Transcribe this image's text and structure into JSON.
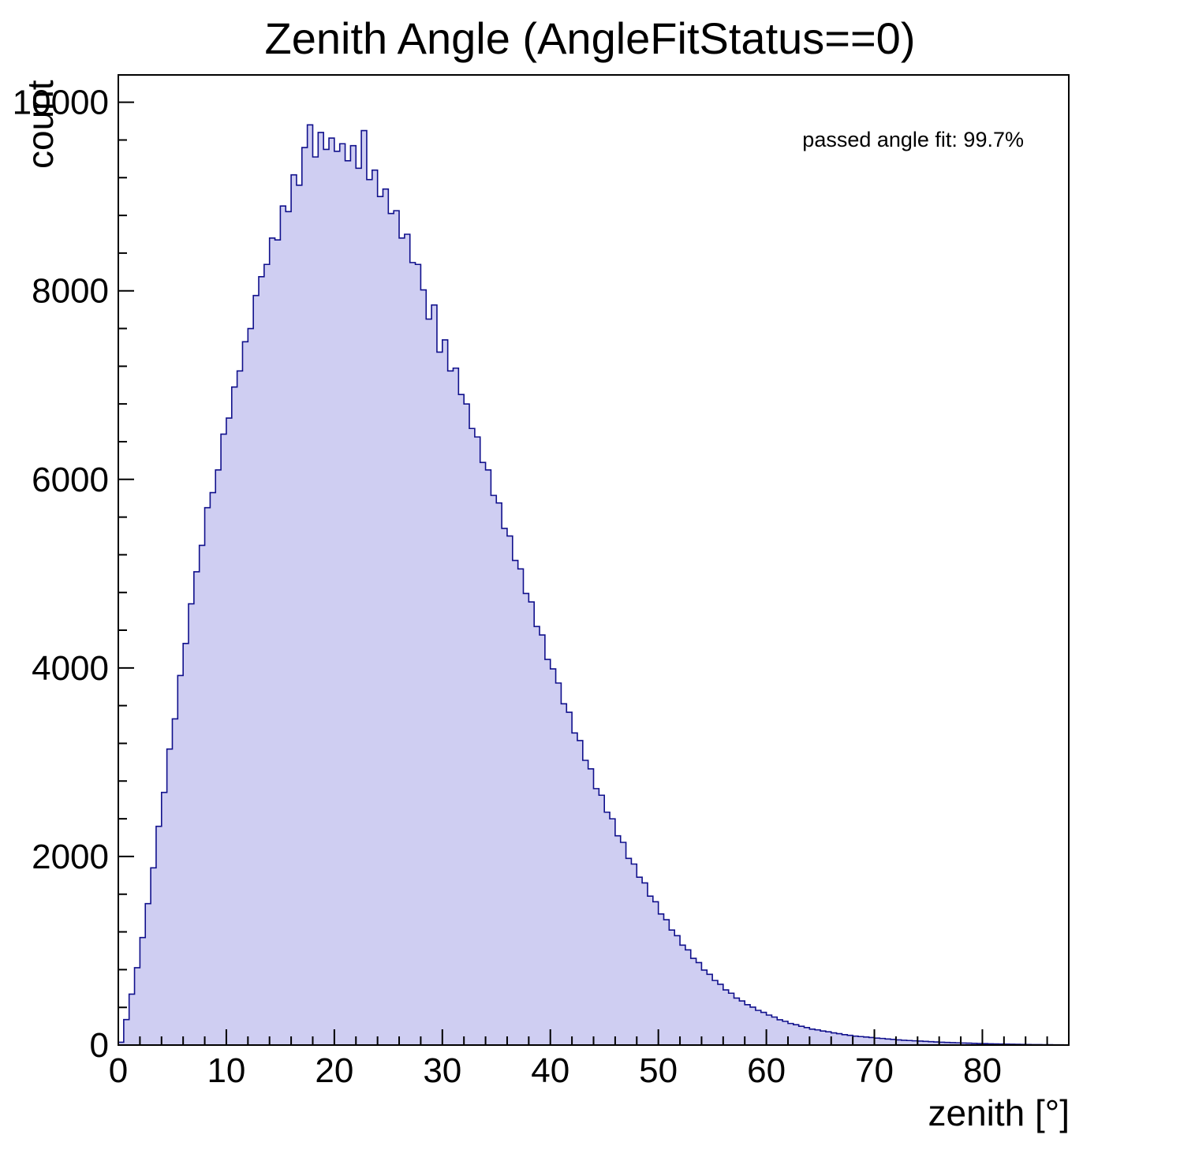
{
  "colors": {
    "fill": "#cfcef2",
    "line": "#10108c",
    "axis": "#000000",
    "background": "#ffffff"
  },
  "chart_data": {
    "type": "bar",
    "title": "Zenith Angle (AngleFitStatus==0)",
    "xlabel": "zenith [°]",
    "ylabel": "count",
    "annotation": "passed angle fit: 99.7%",
    "bin_width_deg": 0.5,
    "x_start": 0,
    "xlim": [
      0,
      88
    ],
    "ylim": [
      0,
      10290
    ],
    "x_ticks": [
      0,
      10,
      20,
      30,
      40,
      50,
      60,
      70,
      80
    ],
    "y_ticks": [
      0,
      2000,
      4000,
      6000,
      8000,
      10000
    ],
    "x_minor_step": 2,
    "y_minor_step": 400,
    "grid": false,
    "values": [
      30,
      270,
      540,
      820,
      1140,
      1500,
      1880,
      2320,
      2680,
      3140,
      3460,
      3920,
      4260,
      4680,
      5020,
      5300,
      5700,
      5860,
      6100,
      6480,
      6650,
      6980,
      7150,
      7460,
      7600,
      7950,
      8150,
      8280,
      8560,
      8540,
      8900,
      8840,
      9230,
      9120,
      9520,
      9760,
      9420,
      9680,
      9500,
      9620,
      9480,
      9560,
      9380,
      9540,
      9300,
      9700,
      9180,
      9280,
      9000,
      9080,
      8820,
      8850,
      8560,
      8600,
      8300,
      8280,
      8010,
      7700,
      7850,
      7350,
      7480,
      7150,
      7180,
      6900,
      6800,
      6540,
      6450,
      6180,
      6100,
      5830,
      5750,
      5480,
      5400,
      5140,
      5050,
      4790,
      4700,
      4440,
      4350,
      4090,
      3990,
      3840,
      3620,
      3530,
      3310,
      3230,
      3020,
      2930,
      2720,
      2650,
      2470,
      2400,
      2220,
      2150,
      1980,
      1920,
      1780,
      1720,
      1580,
      1520,
      1390,
      1330,
      1220,
      1160,
      1060,
      1010,
      920,
      875,
      795,
      750,
      685,
      645,
      585,
      550,
      498,
      468,
      428,
      402,
      368,
      347,
      318,
      297,
      268,
      252,
      229,
      216,
      199,
      186,
      169,
      161,
      149,
      141,
      129,
      121,
      110,
      103,
      95,
      90,
      85,
      80,
      74,
      70,
      64,
      60,
      55,
      51,
      48,
      45,
      42,
      39,
      36,
      33,
      30,
      28,
      26,
      24,
      22,
      20,
      18,
      16,
      15,
      13,
      12,
      11,
      10,
      9,
      8,
      7,
      6,
      5,
      5,
      4,
      4,
      3,
      3,
      2
    ]
  }
}
